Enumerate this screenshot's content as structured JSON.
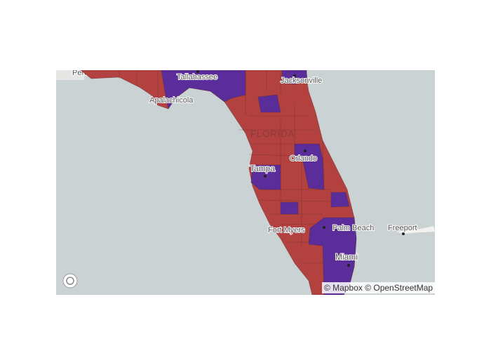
{
  "map": {
    "labels": [
      "Pensacola",
      "Tallahassee",
      "Jacksonville",
      "Apalachicola",
      "FLORIDA",
      "Orlando",
      "Tampa",
      "Fort Myers",
      "Palm Beach",
      "Miami",
      "Freeport"
    ],
    "attribution": "© Mapbox © OpenStreetMap"
  }
}
